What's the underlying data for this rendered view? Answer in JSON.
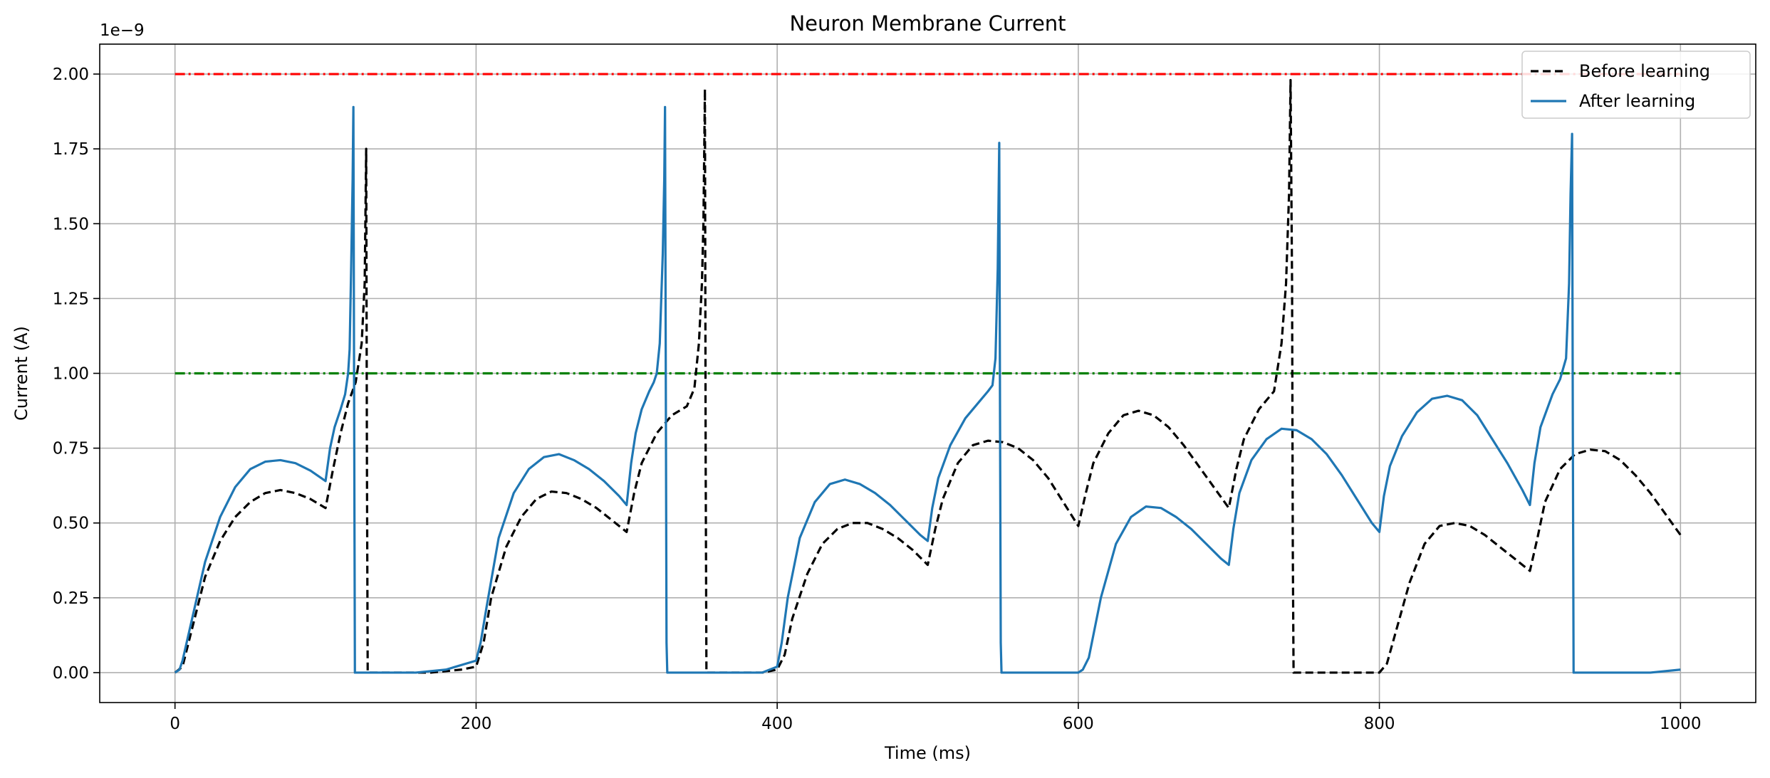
{
  "chart_data": {
    "type": "line",
    "title": "Neuron Membrane Current",
    "xlabel": "Time (ms)",
    "ylabel": "Current (A)",
    "y_offset_text": "1e−9",
    "xlim": [
      -50,
      1050
    ],
    "ylim": [
      -0.1,
      2.1
    ],
    "x_ticks": [
      0,
      200,
      400,
      600,
      800,
      1000
    ],
    "x_tick_labels": [
      "0",
      "200",
      "400",
      "600",
      "800",
      "1000"
    ],
    "y_ticks": [
      0.0,
      0.25,
      0.5,
      0.75,
      1.0,
      1.25,
      1.5,
      1.75,
      2.0
    ],
    "y_tick_labels": [
      "0.00",
      "0.25",
      "0.50",
      "0.75",
      "1.00",
      "1.25",
      "1.50",
      "1.75",
      "2.00"
    ],
    "grid": true,
    "legend_position": "top-right",
    "reference_lines": [
      {
        "y": 2.0,
        "x_range": [
          0,
          1000
        ],
        "color": "#ff0000",
        "style": "dashdot"
      },
      {
        "y": 1.0,
        "x_range": [
          0,
          1000
        ],
        "color": "#008000",
        "style": "dashdot"
      }
    ],
    "series": [
      {
        "name": "Before learning",
        "color": "#000000",
        "style": "dashed",
        "x": [
          0,
          5,
          10,
          20,
          30,
          40,
          50,
          60,
          70,
          80,
          90,
          100,
          105,
          110,
          115,
          120,
          124,
          126,
          127,
          127.5,
          128,
          150,
          170,
          190,
          200,
          205,
          210,
          220,
          230,
          240,
          250,
          260,
          270,
          280,
          290,
          300,
          305,
          310,
          320,
          330,
          340,
          345,
          348,
          350,
          351,
          352,
          352.5,
          353,
          370,
          390,
          400,
          405,
          410,
          420,
          430,
          440,
          450,
          460,
          470,
          480,
          490,
          500,
          505,
          510,
          520,
          530,
          540,
          550,
          560,
          570,
          580,
          590,
          600,
          605,
          610,
          620,
          630,
          640,
          650,
          660,
          670,
          680,
          690,
          700,
          705,
          710,
          720,
          730,
          735,
          738,
          740,
          741,
          742,
          742.5,
          743,
          760,
          780,
          800,
          805,
          810,
          820,
          830,
          840,
          850,
          860,
          870,
          880,
          890,
          900,
          905,
          910,
          920,
          930,
          940,
          950,
          960,
          970,
          980,
          990,
          1000
        ],
        "y": [
          0,
          0.02,
          0.12,
          0.32,
          0.44,
          0.52,
          0.57,
          0.6,
          0.61,
          0.6,
          0.58,
          0.55,
          0.68,
          0.8,
          0.9,
          0.97,
          1.1,
          1.3,
          1.75,
          0.7,
          0,
          0,
          0,
          0.01,
          0.02,
          0.1,
          0.25,
          0.42,
          0.52,
          0.58,
          0.605,
          0.6,
          0.58,
          0.55,
          0.51,
          0.47,
          0.6,
          0.7,
          0.8,
          0.86,
          0.89,
          0.95,
          1.1,
          1.3,
          1.5,
          1.95,
          0.7,
          0,
          0,
          0,
          0.01,
          0.06,
          0.18,
          0.33,
          0.43,
          0.48,
          0.5,
          0.5,
          0.48,
          0.45,
          0.41,
          0.36,
          0.48,
          0.58,
          0.7,
          0.76,
          0.775,
          0.77,
          0.75,
          0.71,
          0.65,
          0.57,
          0.49,
          0.6,
          0.7,
          0.8,
          0.86,
          0.875,
          0.86,
          0.82,
          0.76,
          0.69,
          0.62,
          0.55,
          0.68,
          0.78,
          0.88,
          0.94,
          1.1,
          1.3,
          1.6,
          1.98,
          1.3,
          0.4,
          0,
          0,
          0,
          0,
          0.03,
          0.12,
          0.3,
          0.43,
          0.49,
          0.5,
          0.49,
          0.46,
          0.42,
          0.38,
          0.34,
          0.45,
          0.57,
          0.68,
          0.73,
          0.745,
          0.74,
          0.71,
          0.66,
          0.6,
          0.53,
          0.46
        ]
      },
      {
        "name": "After learning",
        "color": "#1f77b4",
        "style": "solid",
        "x": [
          0,
          3,
          5,
          10,
          20,
          30,
          40,
          50,
          60,
          70,
          80,
          90,
          100,
          103,
          106,
          110,
          113,
          115,
          116,
          117,
          118,
          118.5,
          119,
          119.5,
          120,
          140,
          160,
          180,
          200,
          203,
          207,
          215,
          225,
          235,
          245,
          255,
          265,
          275,
          285,
          295,
          300,
          303,
          306,
          310,
          315,
          318,
          320,
          322,
          324,
          325,
          325.5,
          326,
          326.5,
          327,
          360,
          390,
          400,
          403,
          407,
          415,
          425,
          435,
          445,
          455,
          465,
          475,
          485,
          495,
          500,
          503,
          507,
          515,
          525,
          535,
          540,
          543,
          545,
          546.5,
          547.5,
          548,
          548.5,
          549,
          570,
          590,
          600,
          603,
          607,
          615,
          625,
          635,
          645,
          655,
          665,
          675,
          685,
          695,
          700,
          703,
          707,
          715,
          725,
          735,
          745,
          755,
          765,
          775,
          785,
          795,
          800,
          803,
          807,
          815,
          825,
          835,
          845,
          855,
          865,
          875,
          885,
          895,
          900,
          903,
          907,
          915,
          920,
          924,
          926,
          927,
          928,
          928.5,
          929,
          960,
          980,
          1000
        ],
        "y": [
          0,
          0.01,
          0.04,
          0.15,
          0.37,
          0.52,
          0.62,
          0.68,
          0.705,
          0.71,
          0.7,
          0.675,
          0.64,
          0.75,
          0.82,
          0.88,
          0.93,
          1.0,
          1.08,
          1.35,
          1.65,
          1.89,
          0.9,
          0,
          0,
          0,
          0,
          0.01,
          0.04,
          0.1,
          0.22,
          0.45,
          0.6,
          0.68,
          0.72,
          0.73,
          0.71,
          0.68,
          0.64,
          0.59,
          0.56,
          0.7,
          0.8,
          0.88,
          0.94,
          0.97,
          1.0,
          1.1,
          1.4,
          1.65,
          1.89,
          1.0,
          0.1,
          0,
          0,
          0,
          0.02,
          0.1,
          0.25,
          0.45,
          0.57,
          0.63,
          0.645,
          0.63,
          0.6,
          0.56,
          0.51,
          0.46,
          0.44,
          0.55,
          0.65,
          0.76,
          0.85,
          0.91,
          0.94,
          0.96,
          1.05,
          1.35,
          1.77,
          0.9,
          0.1,
          0,
          0,
          0,
          0,
          0.01,
          0.05,
          0.25,
          0.43,
          0.52,
          0.555,
          0.55,
          0.52,
          0.48,
          0.43,
          0.38,
          0.36,
          0.48,
          0.6,
          0.71,
          0.78,
          0.815,
          0.81,
          0.78,
          0.73,
          0.66,
          0.58,
          0.5,
          0.47,
          0.59,
          0.69,
          0.79,
          0.87,
          0.915,
          0.925,
          0.91,
          0.86,
          0.78,
          0.7,
          0.61,
          0.56,
          0.7,
          0.82,
          0.93,
          0.98,
          1.05,
          1.3,
          1.6,
          1.8,
          0.8,
          0,
          0,
          0,
          0.01
        ]
      }
    ]
  }
}
